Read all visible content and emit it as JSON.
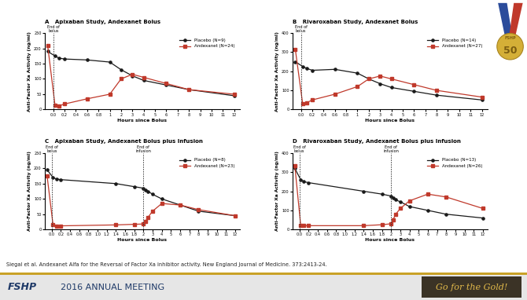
{
  "chart_data": [
    {
      "type": "line",
      "panel": "A",
      "title": "Apixaban Study, Andexanet Bolus",
      "x_label": "Hours since Bolus",
      "y_label": "Anti-Factor Xa Activity (ng/ml)",
      "x": [
        -0.1,
        0.03,
        0.1,
        0.2,
        0.6,
        1,
        2,
        3,
        4,
        6,
        8,
        12
      ],
      "xlim": [
        -0.15,
        12.5
      ],
      "xticks": [
        0.0,
        0.2,
        0.4,
        0.6,
        0.8,
        1,
        2,
        3,
        4,
        5,
        6,
        7,
        8,
        9,
        10,
        11,
        12
      ],
      "ylim": [
        0,
        250
      ],
      "yticks": [
        0,
        50,
        100,
        150,
        200,
        250
      ],
      "grid": false,
      "legend": "upper right",
      "annotations": [
        {
          "text": "End of\nbolus",
          "x": 0.0
        }
      ],
      "series": [
        {
          "name": "Placebo (N=9)",
          "color": "#1a1a1a",
          "marker": "circle",
          "line_style": "solid",
          "values": [
            190,
            175,
            168,
            165,
            162,
            155,
            130,
            110,
            95,
            80,
            65,
            45
          ]
        },
        {
          "name": "Andexanet (N=24)",
          "color": "#c0392b",
          "marker": "square",
          "line_style": "solid",
          "values": [
            210,
            15,
            12,
            18,
            35,
            50,
            100,
            115,
            105,
            85,
            65,
            50
          ]
        }
      ]
    },
    {
      "type": "line",
      "panel": "B",
      "title": "Rivaroxaban Study, Andexanet Bolus",
      "x_label": "Hours since Bolus",
      "y_label": "Anti-Factor Xa Activity (ng/ml)",
      "x": [
        -0.1,
        0.03,
        0.1,
        0.2,
        0.6,
        1,
        2,
        3,
        4,
        6,
        8,
        12
      ],
      "xlim": [
        -0.15,
        12.5
      ],
      "xticks": [
        0.0,
        0.2,
        0.4,
        0.6,
        0.8,
        1,
        2,
        3,
        4,
        5,
        6,
        7,
        8,
        9,
        10,
        11,
        12
      ],
      "ylim": [
        0,
        400
      ],
      "yticks": [
        0,
        100,
        200,
        300,
        400
      ],
      "grid": false,
      "legend": "upper right",
      "annotations": [
        {
          "text": "End of\nbolus",
          "x": 0.0
        }
      ],
      "series": [
        {
          "name": "Placebo (N=14)",
          "color": "#1a1a1a",
          "marker": "circle",
          "line_style": "solid",
          "values": [
            250,
            225,
            215,
            205,
            210,
            190,
            160,
            135,
            115,
            95,
            75,
            50
          ]
        },
        {
          "name": "Andexanet (N=27)",
          "color": "#c0392b",
          "marker": "square",
          "line_style": "solid",
          "values": [
            315,
            30,
            35,
            50,
            80,
            120,
            160,
            175,
            160,
            130,
            100,
            65
          ]
        }
      ]
    },
    {
      "type": "line",
      "panel": "C",
      "title": "Apixaban Study, Andexanet Bolus plus Infusion",
      "x_label": "Hours since Bolus",
      "y_label": "Anti-Factor Xa Activity (ng/ml)",
      "x": [
        -0.1,
        0.03,
        0.1,
        0.2,
        1.4,
        1.8,
        2,
        2.2,
        2.5,
        3,
        4,
        6,
        8,
        12
      ],
      "xlim": [
        -0.15,
        12.5
      ],
      "xticks": [
        0.0,
        0.2,
        0.4,
        0.6,
        0.8,
        1.0,
        1.2,
        1.4,
        1.6,
        1.8,
        2,
        3,
        4,
        5,
        6,
        7,
        8,
        9,
        10,
        11,
        12
      ],
      "ylim": [
        0,
        250
      ],
      "yticks": [
        0,
        50,
        100,
        150,
        200,
        250
      ],
      "grid": false,
      "legend": "upper right",
      "annotations": [
        {
          "text": "End of\nbolus",
          "x": 0.0
        },
        {
          "text": "End of\ninfusion",
          "x": 2
        }
      ],
      "series": [
        {
          "name": "Placebo (N=8)",
          "color": "#1a1a1a",
          "marker": "circle",
          "line_style": "solid",
          "values": [
            195,
            170,
            165,
            163,
            150,
            140,
            135,
            130,
            125,
            115,
            100,
            80,
            60,
            45
          ]
        },
        {
          "name": "Andexanet (N=23)",
          "color": "#c0392b",
          "marker": "square",
          "line_style": "solid",
          "values": [
            175,
            15,
            12,
            12,
            15,
            17,
            18,
            25,
            40,
            60,
            85,
            80,
            65,
            45
          ]
        }
      ]
    },
    {
      "type": "line",
      "panel": "D",
      "title": "Rivaroxaban Study, Andexanet Bolus plus Infusion",
      "x_label": "Hours since Bolus",
      "y_label": "Anti-Factor Xa Activity (ng/ml)",
      "x": [
        -0.1,
        0.03,
        0.1,
        0.2,
        1.4,
        1.8,
        2,
        2.2,
        2.5,
        3,
        4,
        6,
        8,
        12
      ],
      "xlim": [
        -0.15,
        12.5
      ],
      "xticks": [
        0.0,
        0.2,
        0.4,
        0.6,
        0.8,
        1.0,
        1.2,
        1.4,
        1.6,
        1.8,
        2,
        3,
        4,
        5,
        6,
        7,
        8,
        9,
        10,
        11,
        12
      ],
      "ylim": [
        0,
        400
      ],
      "yticks": [
        0,
        100,
        200,
        300,
        400
      ],
      "grid": false,
      "legend": "upper right",
      "annotations": [
        {
          "text": "End of\nbolus",
          "x": 0.0
        },
        {
          "text": "End of\ninfusion",
          "x": 2
        }
      ],
      "series": [
        {
          "name": "Placebo (N=13)",
          "color": "#1a1a1a",
          "marker": "circle",
          "line_style": "solid",
          "values": [
            320,
            260,
            250,
            245,
            200,
            185,
            175,
            165,
            155,
            145,
            120,
            100,
            80,
            60
          ]
        },
        {
          "name": "Andexanet (N=26)",
          "color": "#c0392b",
          "marker": "square",
          "line_style": "solid",
          "values": [
            335,
            20,
            20,
            20,
            20,
            25,
            30,
            50,
            80,
            110,
            150,
            185,
            170,
            110
          ]
        }
      ]
    }
  ],
  "citation": "Siegal et al. Andexanet Alfa for the Reversal of Factor Xa inhibitor activity. New England Journal of Medicine. 373:2413-24.",
  "footer": {
    "logo": "FSHP",
    "meeting": "2016 ANNUAL MEETING",
    "slogan": "Go for the Gold!"
  },
  "medal": {
    "text": "FSHP",
    "number": "50"
  }
}
